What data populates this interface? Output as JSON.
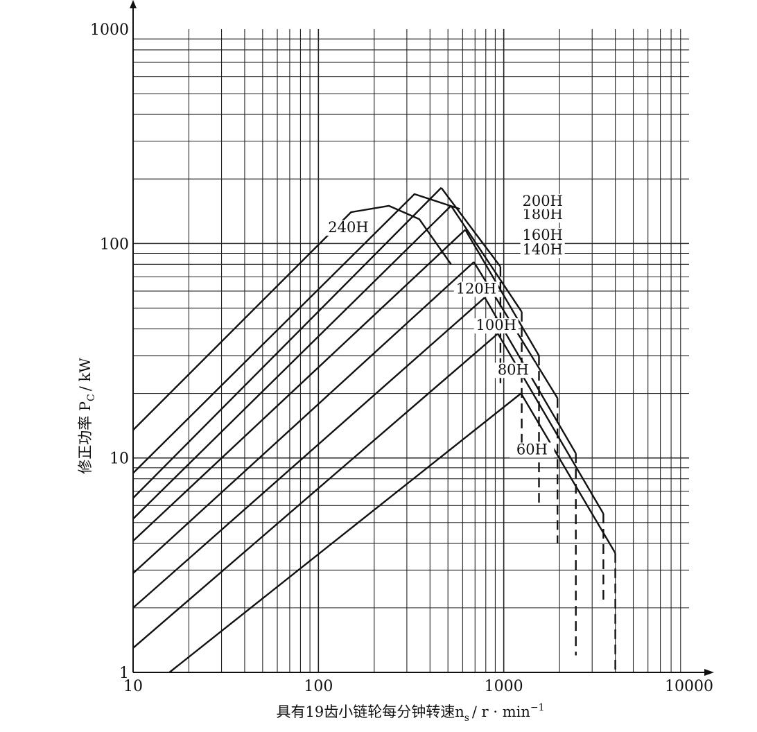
{
  "chart_data": {
    "type": "line",
    "title": "",
    "xlabel": "具有19齿小链轮每分钟转速n",
    "xlabel_sub": "s",
    "xlabel_unit": "/ r · min",
    "xlabel_sup": "−1",
    "ylabel": "修正功率 P",
    "ylabel_sub": "C",
    "ylabel_unit": "/ kW",
    "x_scale": "log",
    "y_scale": "log",
    "xlim": [
      10,
      10000
    ],
    "ylim": [
      1,
      1000
    ],
    "grid": true,
    "legend": "none",
    "x_ticks": [
      {
        "value": 10,
        "label": "10"
      },
      {
        "value": 100,
        "label": "100"
      },
      {
        "value": 1000,
        "label": "1000"
      },
      {
        "value": 10000,
        "label": "10000"
      }
    ],
    "y_ticks": [
      {
        "value": 1,
        "label": "1"
      },
      {
        "value": 10,
        "label": "10"
      },
      {
        "value": 100,
        "label": "100"
      },
      {
        "value": 1000,
        "label": "1000"
      }
    ],
    "series": [
      {
        "name": "60H",
        "label_at": [
          1420,
          10.4
        ],
        "rise": [
          [
            15.7,
            1
          ],
          [
            1240,
            20
          ]
        ],
        "fall": [
          [
            1240,
            20
          ],
          [
            4000,
            3.6
          ]
        ],
        "dashed": [
          [
            4000,
            3.6
          ],
          [
            4000,
            1
          ]
        ]
      },
      {
        "name": "80H",
        "label_at": [
          1125,
          24.5
        ],
        "rise": [
          [
            10,
            1.3
          ],
          [
            930,
            38
          ]
        ],
        "fall": [
          [
            930,
            38
          ],
          [
            3450,
            5.5
          ]
        ],
        "dashed": [
          [
            3450,
            5.5
          ],
          [
            3450,
            2.1
          ]
        ]
      },
      {
        "name": "100H",
        "label_at": [
          910,
          39.5
        ],
        "rise": [
          [
            10,
            2
          ],
          [
            790,
            56
          ]
        ],
        "fall": [
          [
            790,
            56
          ],
          [
            2450,
            10.5
          ]
        ],
        "dashed": [
          [
            2450,
            10.5
          ],
          [
            2450,
            1.2
          ]
        ]
      },
      {
        "name": "120H",
        "label_at": [
          710,
          58.5
        ],
        "rise": [
          [
            10,
            2.9
          ],
          [
            690,
            82
          ]
        ],
        "fall": [
          [
            690,
            82
          ],
          [
            1950,
            19
          ]
        ],
        "dashed": [
          [
            1950,
            19
          ],
          [
            1950,
            4
          ]
        ]
      },
      {
        "name": "140H",
        "label_at": [
          1620,
          89
        ],
        "rise": [
          [
            10,
            4.1
          ],
          [
            620,
            116
          ]
        ],
        "fall": [
          [
            620,
            116
          ],
          [
            1550,
            30
          ]
        ],
        "dashed": [
          [
            1550,
            30
          ],
          [
            1550,
            6
          ]
        ]
      },
      {
        "name": "160H",
        "label_at": [
          1620,
          104
        ],
        "rise": [
          [
            10,
            5.2
          ],
          [
            520,
            150
          ]
        ],
        "fall": [
          [
            520,
            150
          ],
          [
            1250,
            48
          ]
        ],
        "dashed": [
          [
            1250,
            48
          ],
          [
            1250,
            11
          ]
        ]
      },
      {
        "name": "180H",
        "label_at": [
          1620,
          130
        ],
        "rise": [
          [
            10,
            6.5
          ],
          [
            460,
            182
          ]
        ],
        "fall": [
          [
            460,
            182
          ],
          [
            960,
            78
          ]
        ],
        "dashed": [
          [
            960,
            78
          ],
          [
            960,
            22
          ]
        ]
      },
      {
        "name": "200H",
        "label_at": [
          1620,
          150
        ],
        "rise": [
          [
            10,
            8.5
          ],
          [
            330,
            170
          ],
          [
            580,
            145
          ]
        ],
        "fall": [],
        "dashed": []
      },
      {
        "name": "240H",
        "label_at": [
          145,
          113
        ],
        "rise": [
          [
            10,
            13.5
          ],
          [
            150,
            140
          ],
          [
            240,
            150
          ],
          [
            350,
            130
          ],
          [
            520,
            80
          ]
        ],
        "fall": [],
        "dashed": []
      }
    ]
  }
}
